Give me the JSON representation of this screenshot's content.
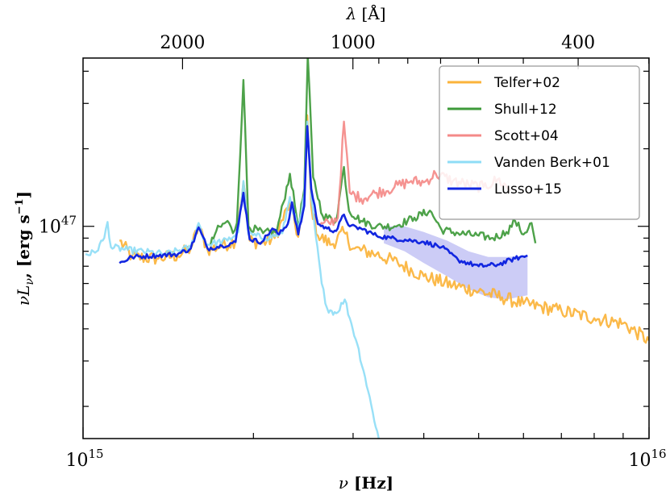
{
  "chart_data": {
    "type": "line",
    "title": "",
    "xlabel": "ν [Hz]",
    "ylabel": "νL_ν [erg s⁻¹]",
    "top_xlabel": "λ [Å]",
    "xscale": "log",
    "yscale": "log",
    "xlim": [
      1000000000000000.0,
      1e+16
    ],
    "ylim": [
      1.5e+46,
      4.5e+47
    ],
    "x_tick_labels": [
      "10^15",
      "10^16"
    ],
    "y_tick_labels": [
      "10^47"
    ],
    "top_ticks": [
      {
        "lambda": 2000,
        "label": "2000"
      },
      {
        "lambda": 1000,
        "label": "1000"
      },
      {
        "lambda": 400,
        "label": "400"
      }
    ],
    "legend_position": "top-right",
    "series": [
      {
        "name": "Telfer+02",
        "color": "#fbb33a",
        "noise": 0.06,
        "points": [
          [
            1160000000000000.0,
            8.8e+46
          ],
          [
            1220000000000000.0,
            7.6e+46
          ],
          [
            1350000000000000.0,
            7.5e+46
          ],
          [
            1470000000000000.0,
            7.7e+46
          ],
          [
            1550000000000000.0,
            8.2e+46
          ],
          [
            1600000000000000.0,
            1e+47
          ],
          [
            1660000000000000.0,
            8.1e+46
          ],
          [
            1760000000000000.0,
            8.4e+46
          ],
          [
            1860000000000000.0,
            8.8e+46
          ],
          [
            1920000000000000.0,
            1.48e+47
          ],
          [
            1970000000000000.0,
            8.8e+46
          ],
          [
            2070000000000000.0,
            8.6e+46
          ],
          [
            2180000000000000.0,
            9e+46
          ],
          [
            2320000000000000.0,
            1.23e+47
          ],
          [
            2400000000000000.0,
            9.1e+46
          ],
          [
            2460000000000000.0,
            1.28e+47
          ],
          [
            2490000000000000.0,
            2.7e+47
          ],
          [
            2530000000000000.0,
            1.2e+47
          ],
          [
            2600000000000000.0,
            9.2e+46
          ],
          [
            2750000000000000.0,
            8.5e+46
          ],
          [
            2890000000000000.0,
            9.5e+46
          ],
          [
            3000000000000000.0,
            8.2e+46
          ],
          [
            3300000000000000.0,
            7.8e+46
          ],
          [
            3600000000000000.0,
            7.2e+46
          ],
          [
            4000000000000000.0,
            6.4e+46
          ],
          [
            4500000000000000.0,
            5.9e+46
          ],
          [
            5000000000000000.0,
            5.6e+46
          ],
          [
            5500000000000000.0,
            5.3e+46
          ],
          [
            6000000000000000.0,
            5e+46
          ],
          [
            7000000000000000.0,
            4.7e+46
          ],
          [
            8000000000000000.0,
            4.4e+46
          ],
          [
            9000000000000000.0,
            4.2e+46
          ],
          [
            1e+16,
            3.6e+46
          ]
        ]
      },
      {
        "name": "Shull+12",
        "color": "#3e9a3a",
        "noise": 0.035,
        "points": [
          [
            1680000000000000.0,
            8.5e+46
          ],
          [
            1720000000000000.0,
            9.6e+46
          ],
          [
            1800000000000000.0,
            1.05e+47
          ],
          [
            1840000000000000.0,
            9.4e+46
          ],
          [
            1870000000000000.0,
            1.03e+47
          ],
          [
            1920000000000000.0,
            3.7e+47
          ],
          [
            1960000000000000.0,
            1e+47
          ],
          [
            2080000000000000.0,
            9.4e+46
          ],
          [
            2200000000000000.0,
            9.6e+46
          ],
          [
            2320000000000000.0,
            1.6e+47
          ],
          [
            2400000000000000.0,
            1e+47
          ],
          [
            2460000000000000.0,
            1.4e+47
          ],
          [
            2495000000000000.0,
            4.6e+47
          ],
          [
            2550000000000000.0,
            1.55e+47
          ],
          [
            2650000000000000.0,
            1.1e+47
          ],
          [
            2800000000000000.0,
            1.05e+47
          ],
          [
            2890000000000000.0,
            1.7e+47
          ],
          [
            2950000000000000.0,
            1.15e+47
          ],
          [
            3100000000000000.0,
            1.05e+47
          ],
          [
            3300000000000000.0,
            1e+47
          ],
          [
            3550000000000000.0,
            1e+47
          ],
          [
            3850000000000000.0,
            1.08e+47
          ],
          [
            4100000000000000.0,
            1.15e+47
          ],
          [
            4300000000000000.0,
            9.7e+46
          ],
          [
            4600000000000000.0,
            9.4e+46
          ],
          [
            5000000000000000.0,
            9.2e+46
          ],
          [
            5300000000000000.0,
            9e+46
          ],
          [
            5600000000000000.0,
            9.5e+46
          ],
          [
            5800000000000000.0,
            1.05e+47
          ],
          [
            6000000000000000.0,
            9.3e+46
          ],
          [
            6200000000000000.0,
            1.03e+47
          ],
          [
            6300000000000000.0,
            8.6e+46
          ]
        ]
      },
      {
        "name": "Scott+04",
        "color": "#f48a88",
        "noise": 0.05,
        "points": [
          [
            2620000000000000.0,
            1e+47
          ],
          [
            2720000000000000.0,
            1.03e+47
          ],
          [
            2820000000000000.0,
            1.08e+47
          ],
          [
            2890000000000000.0,
            2.55e+47
          ],
          [
            2960000000000000.0,
            1.35e+47
          ],
          [
            3100000000000000.0,
            1.28e+47
          ],
          [
            3300000000000000.0,
            1.35e+47
          ],
          [
            3550000000000000.0,
            1.42e+47
          ],
          [
            3800000000000000.0,
            1.5e+47
          ],
          [
            4000000000000000.0,
            1.48e+47
          ],
          [
            4200000000000000.0,
            1.6e+47
          ],
          [
            4500000000000000.0,
            1.5e+47
          ],
          [
            4800000000000000.0,
            1.45e+47
          ],
          [
            5100000000000000.0,
            1.42e+47
          ],
          [
            5400000000000000.0,
            1.52e+47
          ],
          [
            5700000000000000.0,
            1.38e+47
          ]
        ]
      },
      {
        "name": "Vanden Berk+01",
        "color": "#8fddf6",
        "noise": 0.03,
        "points": [
          [
            1010000000000000.0,
            7.8e+46
          ],
          [
            1050000000000000.0,
            7.9e+46
          ],
          [
            1090000000000000.0,
            9e+46
          ],
          [
            1105000000000000.0,
            1.04e+47
          ],
          [
            1120000000000000.0,
            8.3e+46
          ],
          [
            1200000000000000.0,
            8.1e+46
          ],
          [
            1400000000000000.0,
            7.8e+46
          ],
          [
            1550000000000000.0,
            8.3e+46
          ],
          [
            1600000000000000.0,
            1.03e+47
          ],
          [
            1650000000000000.0,
            8.5e+46
          ],
          [
            1800000000000000.0,
            8.8e+46
          ],
          [
            1880000000000000.0,
            9.5e+46
          ],
          [
            1920000000000000.0,
            1.5e+47
          ],
          [
            1960000000000000.0,
            9.3e+46
          ],
          [
            2100000000000000.0,
            9e+46
          ],
          [
            2250000000000000.0,
            9.4e+46
          ],
          [
            2320000000000000.0,
            1.3e+47
          ],
          [
            2400000000000000.0,
            9.6e+46
          ],
          [
            2460000000000000.0,
            1.32e+47
          ],
          [
            2490000000000000.0,
            2.55e+47
          ],
          [
            2530000000000000.0,
            1.3e+47
          ],
          [
            2580000000000000.0,
            9e+46
          ],
          [
            2640000000000000.0,
            6e+46
          ],
          [
            2700000000000000.0,
            4.8e+46
          ],
          [
            2800000000000000.0,
            4.6e+46
          ],
          [
            2900000000000000.0,
            5.2e+46
          ],
          [
            2960000000000000.0,
            4.4e+46
          ],
          [
            3050000000000000.0,
            3.5e+46
          ],
          [
            3150000000000000.0,
            2.6e+46
          ],
          [
            3250000000000000.0,
            1.9e+46
          ],
          [
            3330000000000000.0,
            1.5e+46
          ]
        ]
      },
      {
        "name": "Lusso+15",
        "color": "#1226e0",
        "noise": 0.02,
        "band_color": "#7f7fe8",
        "band_points": [
          [
            3400000000000000.0,
            1e+47,
            8.6e+46
          ],
          [
            3700000000000000.0,
            1e+47,
            8e+46
          ],
          [
            4000000000000000.0,
            9.5e+46,
            7.2e+46
          ],
          [
            4400000000000000.0,
            8.8e+46,
            6.4e+46
          ],
          [
            4800000000000000.0,
            8e+46,
            5.7e+46
          ],
          [
            5200000000000000.0,
            7.6e+46,
            5.3e+46
          ],
          [
            5600000000000000.0,
            7.6e+46,
            5.2e+46
          ],
          [
            6100000000000000.0,
            7.7e+46,
            5.4e+46
          ]
        ],
        "points": [
          [
            1160000000000000.0,
            7.2e+46
          ],
          [
            1220000000000000.0,
            7.6e+46
          ],
          [
            1350000000000000.0,
            7.7e+46
          ],
          [
            1470000000000000.0,
            7.8e+46
          ],
          [
            1550000000000000.0,
            8.2e+46
          ],
          [
            1600000000000000.0,
            9.9e+46
          ],
          [
            1660000000000000.0,
            8.2e+46
          ],
          [
            1760000000000000.0,
            8.4e+46
          ],
          [
            1860000000000000.0,
            8.7e+46
          ],
          [
            1920000000000000.0,
            1.35e+47
          ],
          [
            1970000000000000.0,
            8.9e+46
          ],
          [
            2070000000000000.0,
            8.7e+46
          ],
          [
            2160000000000000.0,
            9.8e+46
          ],
          [
            2220000000000000.0,
            9.3e+46
          ],
          [
            2300000000000000.0,
            1.02e+47
          ],
          [
            2340000000000000.0,
            1.24e+47
          ],
          [
            2400000000000000.0,
            9.3e+46
          ],
          [
            2460000000000000.0,
            1.2e+47
          ],
          [
            2490000000000000.0,
            2.45e+47
          ],
          [
            2530000000000000.0,
            1.4e+47
          ],
          [
            2600000000000000.0,
            1.02e+47
          ],
          [
            2700000000000000.0,
            9.8e+46
          ],
          [
            2800000000000000.0,
            9.6e+46
          ],
          [
            2890000000000000.0,
            1.11e+47
          ],
          [
            2960000000000000.0,
            1e+47
          ],
          [
            3100000000000000.0,
            9.8e+46
          ],
          [
            3300000000000000.0,
            9.2e+46
          ],
          [
            3500000000000000.0,
            9e+46
          ],
          [
            3800000000000000.0,
            8.8e+46
          ],
          [
            4000000000000000.0,
            8.7e+46
          ],
          [
            4300000000000000.0,
            8.3e+46
          ],
          [
            4600000000000000.0,
            7.4e+46
          ],
          [
            5000000000000000.0,
            7e+46
          ],
          [
            5400000000000000.0,
            7.1e+46
          ],
          [
            5800000000000000.0,
            7.5e+46
          ],
          [
            6100000000000000.0,
            7.7e+46
          ]
        ]
      }
    ]
  }
}
